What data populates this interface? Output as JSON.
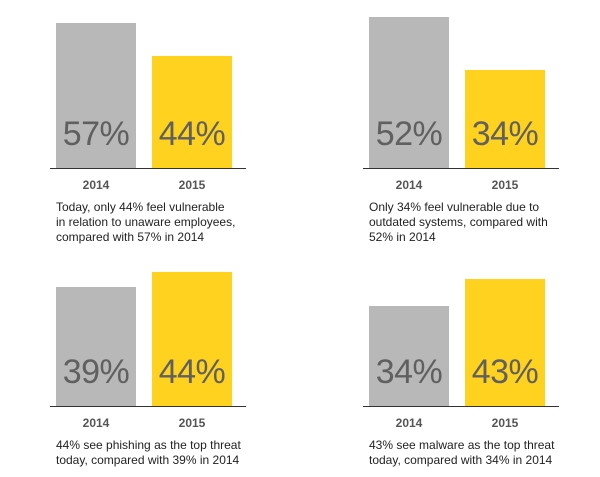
{
  "colors": {
    "bar_2014": "#b8b8b8",
    "bar_2015": "#ffd21f",
    "value_text": "#606060",
    "axis": "#333333"
  },
  "chart_data": [
    {
      "type": "bar",
      "categories": [
        "2014",
        "2015"
      ],
      "values": [
        57,
        44
      ],
      "value_labels": [
        "57%",
        "44%"
      ],
      "ylim": [
        0,
        66
      ],
      "caption_lines": [
        "Today, only 44% feel vulnerable",
        "in relation to unaware employees,",
        "compared with 57% in 2014"
      ]
    },
    {
      "type": "bar",
      "categories": [
        "2014",
        "2015"
      ],
      "values": [
        52,
        34
      ],
      "value_labels": [
        "52%",
        "34%"
      ],
      "ylim": [
        0,
        58
      ],
      "caption_lines": [
        "Only 34% feel vulnerable due to",
        "outdated systems, compared with",
        "52% in 2014"
      ]
    },
    {
      "type": "bar",
      "categories": [
        "2014",
        "2015"
      ],
      "values": [
        39,
        44
      ],
      "value_labels": [
        "39%",
        "44%"
      ],
      "ylim": [
        0,
        55
      ],
      "caption_lines": [
        "44% see phishing as the top threat",
        "today, compared with 39% in 2014"
      ]
    },
    {
      "type": "bar",
      "categories": [
        "2014",
        "2015"
      ],
      "values": [
        34,
        43
      ],
      "value_labels": [
        "34%",
        "43%"
      ],
      "ylim": [
        0,
        57
      ],
      "caption_lines": [
        "43% see malware as the top threat",
        "today, compared with 34% in 2014"
      ]
    }
  ]
}
